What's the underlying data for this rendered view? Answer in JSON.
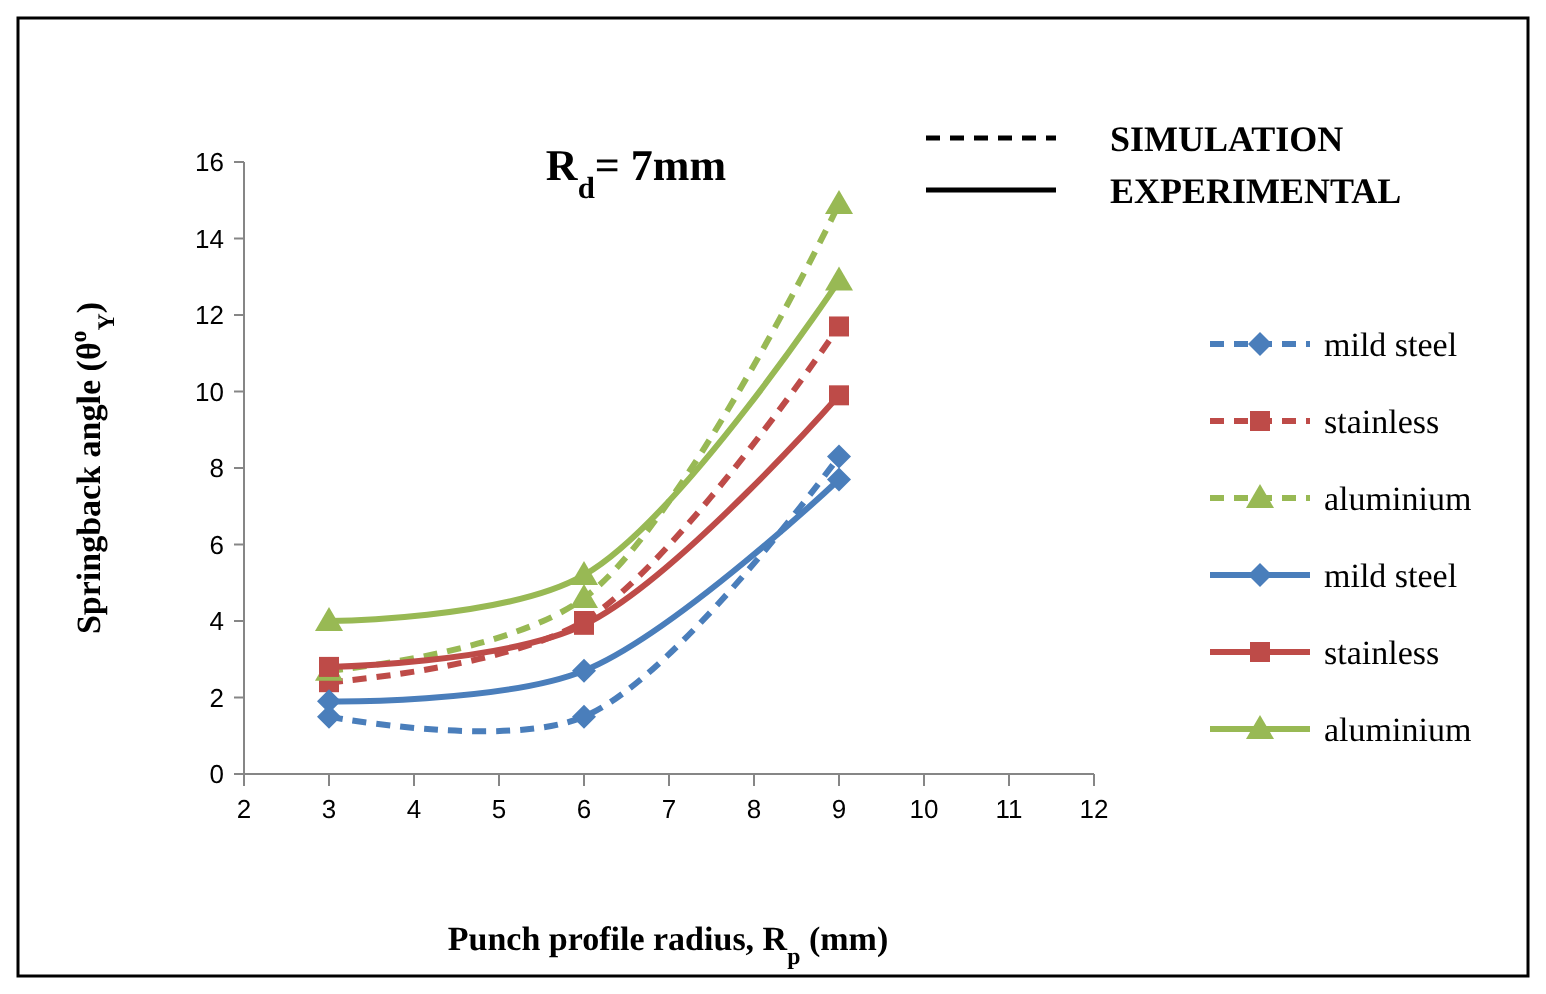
{
  "chart_data": {
    "type": "line",
    "title": "R$_{d}$= 7mm",
    "xlabel": "Punch profile radius, R$_{p}$ (mm)",
    "ylabel": "Springback angle (θ$^{o}$$_{Y}$)",
    "annotations": [
      "SIMULATION",
      "EXPERIMENTAL"
    ],
    "x": [
      3,
      6,
      9
    ],
    "xlim": [
      2,
      12
    ],
    "xticks": [
      2,
      3,
      4,
      5,
      6,
      7,
      8,
      9,
      10,
      11,
      12
    ],
    "ylim": [
      0,
      16
    ],
    "yticks": [
      0,
      2,
      4,
      6,
      8,
      10,
      12,
      14,
      16
    ],
    "grid": false,
    "legend": "right",
    "series": [
      {
        "name": "mild steel",
        "color": "#4a7ebb",
        "values": [
          1.5,
          1.5,
          8.3
        ],
        "line_style": "dashed",
        "marker": "diamond"
      },
      {
        "name": "stainless",
        "color": "#be4b48",
        "values": [
          2.4,
          4.0,
          11.7
        ],
        "line_style": "dashed",
        "marker": "square"
      },
      {
        "name": "aluminium",
        "color": "#98b954",
        "values": [
          2.7,
          4.6,
          14.9
        ],
        "line_style": "dashed",
        "marker": "triangle"
      },
      {
        "name": "mild steel",
        "color": "#4a7ebb",
        "values": [
          1.9,
          2.7,
          7.7
        ],
        "line_style": "solid",
        "marker": "diamond"
      },
      {
        "name": "stainless",
        "color": "#be4b48",
        "values": [
          2.8,
          3.9,
          9.9
        ],
        "line_style": "solid",
        "marker": "square"
      },
      {
        "name": "aluminium",
        "color": "#98b954",
        "values": [
          4.0,
          5.2,
          12.9
        ],
        "line_style": "solid",
        "marker": "triangle"
      }
    ]
  }
}
